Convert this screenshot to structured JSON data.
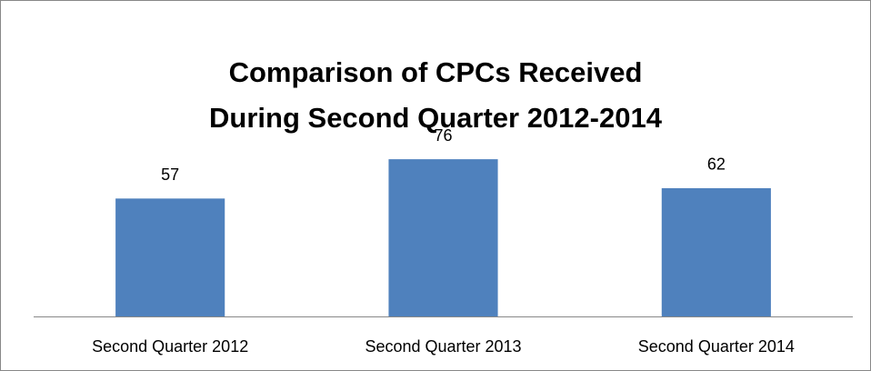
{
  "chart_data": {
    "type": "bar",
    "title": [
      "Comparison of CPCs Received",
      "During Second Quarter 2012-2014"
    ],
    "categories": [
      "Second Quarter 2012",
      "Second Quarter 2013",
      "Second Quarter 2014"
    ],
    "values": [
      57,
      76,
      62
    ],
    "color": "#4f81bd",
    "ylim": [
      0,
      80
    ],
    "data_labels": true
  }
}
